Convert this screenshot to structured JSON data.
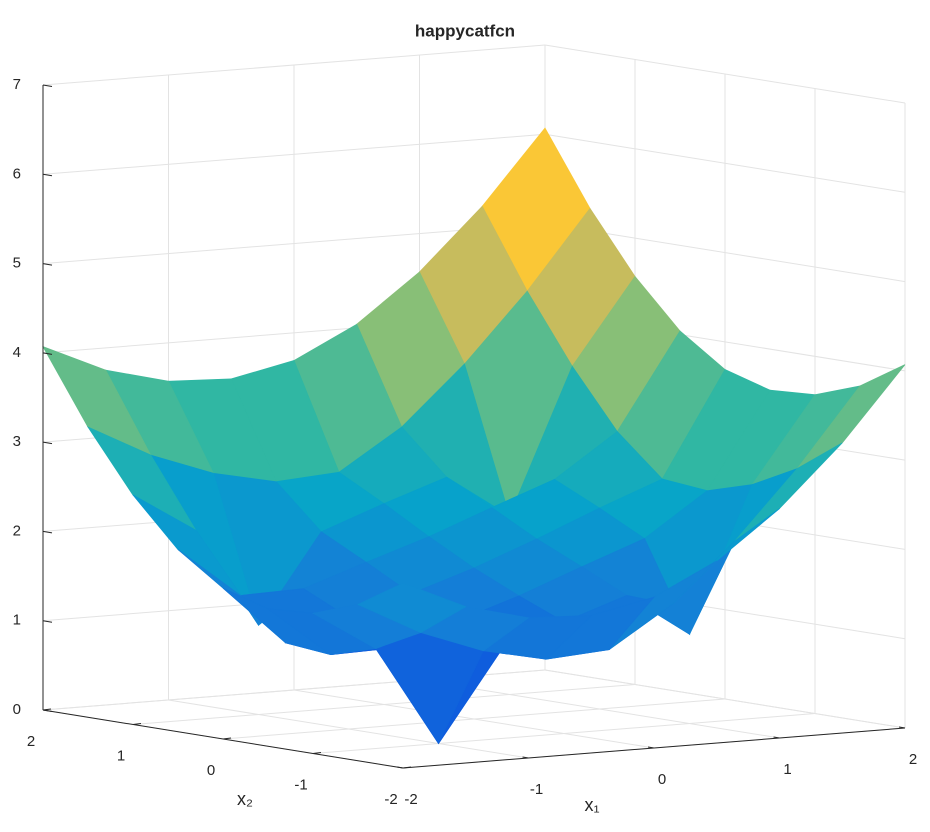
{
  "chart_data": {
    "type": "surface",
    "title": "happycatfcn",
    "xlabel": "x₁",
    "ylabel": "x₂",
    "x": [
      -2,
      -1.5,
      -1,
      -0.5,
      0,
      0.5,
      1,
      1.5,
      2
    ],
    "y": [
      -2,
      -1.5,
      -1,
      -0.5,
      0,
      0.5,
      1,
      1.5,
      2
    ],
    "z": [
      [
        2.07,
        1.75,
        1.57,
        1.54,
        1.69,
        2.04,
        2.57,
        3.25,
        4.07
      ],
      [
        1.75,
        1.38,
        1.12,
        0.97,
        1.02,
        1.47,
        2.12,
        2.88,
        3.75
      ],
      [
        1.57,
        1.12,
        0.0,
        0.99,
        1.25,
        1.49,
        1.0,
        2.62,
        3.57
      ],
      [
        1.54,
        0.97,
        0.99,
        1.23,
        1.46,
        1.73,
        1.99,
        2.47,
        3.54
      ],
      [
        1.69,
        1.02,
        1.25,
        1.46,
        1.69,
        1.96,
        2.25,
        2.52,
        3.69
      ],
      [
        2.04,
        1.47,
        1.49,
        1.73,
        1.96,
        2.23,
        2.49,
        2.97,
        4.04
      ],
      [
        2.57,
        2.12,
        1.0,
        1.99,
        2.25,
        2.49,
        2.0,
        3.62,
        4.57
      ],
      [
        3.25,
        2.88,
        2.62,
        2.47,
        2.52,
        2.97,
        3.62,
        4.38,
        5.25
      ],
      [
        4.07,
        3.75,
        3.57,
        3.54,
        3.69,
        4.04,
        4.57,
        5.25,
        6.07
      ]
    ],
    "xlim": [
      -2,
      2
    ],
    "ylim": [
      -2,
      2
    ],
    "zlim": [
      0,
      7
    ],
    "xticks": [
      -2,
      -1,
      0,
      1,
      2
    ],
    "yticks": [
      -2,
      -1,
      0,
      1,
      2
    ],
    "zticks": [
      0,
      1,
      2,
      3,
      4,
      5,
      6,
      7
    ],
    "grid": true,
    "colormap": [
      "#352a87",
      "#0f5cdd",
      "#1481d6",
      "#06a4ca",
      "#2eb7a4",
      "#87bf77",
      "#d1bb59",
      "#fec832",
      "#f9fb0e"
    ]
  }
}
